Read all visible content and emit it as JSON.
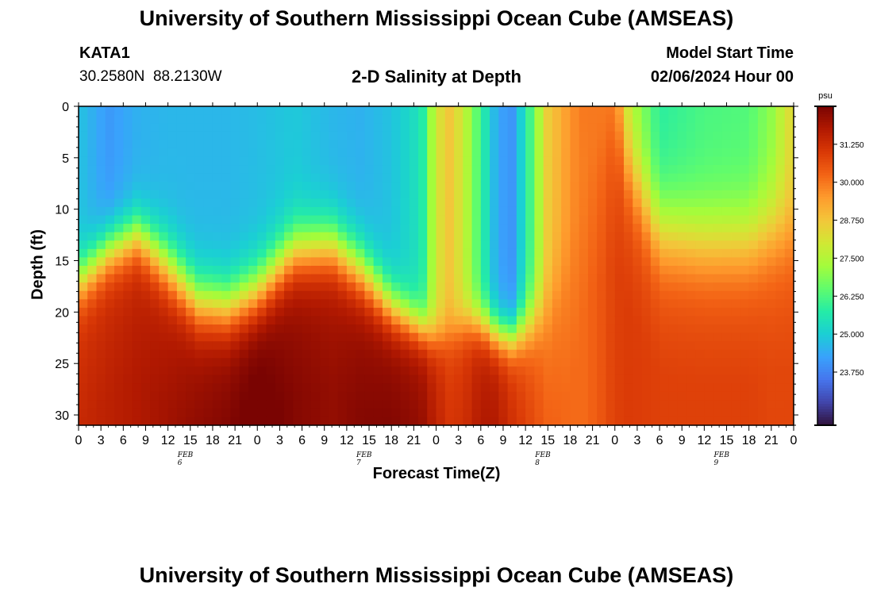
{
  "header": {
    "title": "University of Southern Mississippi Ocean Cube (AMSEAS)",
    "station_id": "KATA1",
    "station_coords": "30.2580N  88.2130W",
    "plot_title": "2-D Salinity at Depth",
    "model_start_label": "Model Start Time",
    "model_start_value": "02/06/2024 Hour 00"
  },
  "footer": {
    "title": "University of Southern Mississippi Ocean Cube (AMSEAS)"
  },
  "chart_data": {
    "type": "heatmap",
    "title": "2-D Salinity at Depth",
    "xlabel": "Forecast Time(Z)",
    "ylabel": "Depth (ft)",
    "x_tick_labels": [
      "0",
      "3",
      "6",
      "9",
      "12",
      "15",
      "18",
      "21",
      "0",
      "3",
      "6",
      "9",
      "12",
      "15",
      "18",
      "21",
      "0",
      "3",
      "6",
      "9",
      "12",
      "15",
      "18",
      "21",
      "0",
      "3",
      "6",
      "9",
      "12",
      "15",
      "18",
      "21",
      "0"
    ],
    "date_labels": [
      {
        "label": "FEB 6",
        "hour": 15
      },
      {
        "label": "FEB 7",
        "hour": 39
      },
      {
        "label": "FEB 8",
        "hour": 63
      },
      {
        "label": "FEB 9",
        "hour": 87
      }
    ],
    "x_range_hours": [
      0,
      96
    ],
    "y_range_ft": [
      0,
      31
    ],
    "y_ticks": [
      0,
      5,
      10,
      15,
      20,
      25,
      30
    ],
    "colorbar": {
      "unit": "psu",
      "range": [
        22.0,
        32.5
      ],
      "tick_values": [
        31.25,
        30.0,
        28.75,
        27.5,
        26.25,
        25.0,
        23.75
      ],
      "tick_labels": [
        "31.250",
        "30.000",
        "28.750",
        "27.500",
        "26.250",
        "25.000",
        "23.750"
      ],
      "colors": [
        "#30123b",
        "#4145ab",
        "#4675ed",
        "#39a2fc",
        "#1bcfd4",
        "#24eca6",
        "#61fc6c",
        "#a4fc3b",
        "#d1e834",
        "#f3c63a",
        "#fe9b2d",
        "#f36315",
        "#d93806",
        "#b11901",
        "#7a0402"
      ]
    },
    "profiles": {
      "hours": [
        0,
        4,
        8,
        12,
        16,
        20,
        24,
        29,
        34,
        38,
        42,
        46,
        48,
        50,
        52,
        54,
        56,
        58,
        60,
        63,
        66,
        68,
        70,
        72,
        74,
        78,
        84,
        90,
        93,
        96
      ],
      "surface_psu": [
        24.8,
        24.1,
        24.5,
        24.6,
        24.6,
        24.6,
        24.7,
        24.9,
        24.6,
        24.5,
        24.8,
        25.5,
        28.0,
        28.8,
        27.6,
        26.0,
        24.5,
        23.9,
        25.5,
        28.6,
        29.6,
        30.0,
        29.9,
        29.7,
        27.5,
        25.8,
        26.2,
        26.3,
        27.0,
        28.5
      ],
      "halocline_ft": [
        17.0,
        14.0,
        12.5,
        15.5,
        19.0,
        19.5,
        18.0,
        14.0,
        13.5,
        16.0,
        19.5,
        21.5,
        22.5,
        22.0,
        21.0,
        21.0,
        22.0,
        22.5,
        21.5,
        19.5,
        14.0,
        5.0,
        3.0,
        1.0,
        6.0,
        12.0,
        13.0,
        13.0,
        12.0,
        12.0
      ],
      "bottom_psu": [
        31.0,
        31.2,
        31.4,
        31.6,
        31.9,
        32.1,
        32.4,
        32.0,
        31.8,
        32.0,
        32.1,
        31.9,
        31.3,
        30.8,
        31.0,
        31.5,
        31.5,
        31.0,
        30.6,
        30.0,
        29.8,
        29.8,
        30.1,
        30.5,
        30.6,
        30.5,
        30.5,
        30.5,
        30.4,
        30.4
      ],
      "thickness_ft": [
        3.0,
        3.0,
        3.0,
        3.5,
        3.5,
        3.5,
        3.5,
        3.5,
        3.5,
        3.5,
        3.0,
        2.5,
        2.5,
        2.5,
        2.5,
        2.5,
        2.5,
        2.5,
        3.0,
        4.0,
        5.0,
        5.5,
        5.5,
        5.0,
        5.0,
        5.0,
        5.0,
        5.0,
        5.0,
        5.0
      ]
    }
  }
}
